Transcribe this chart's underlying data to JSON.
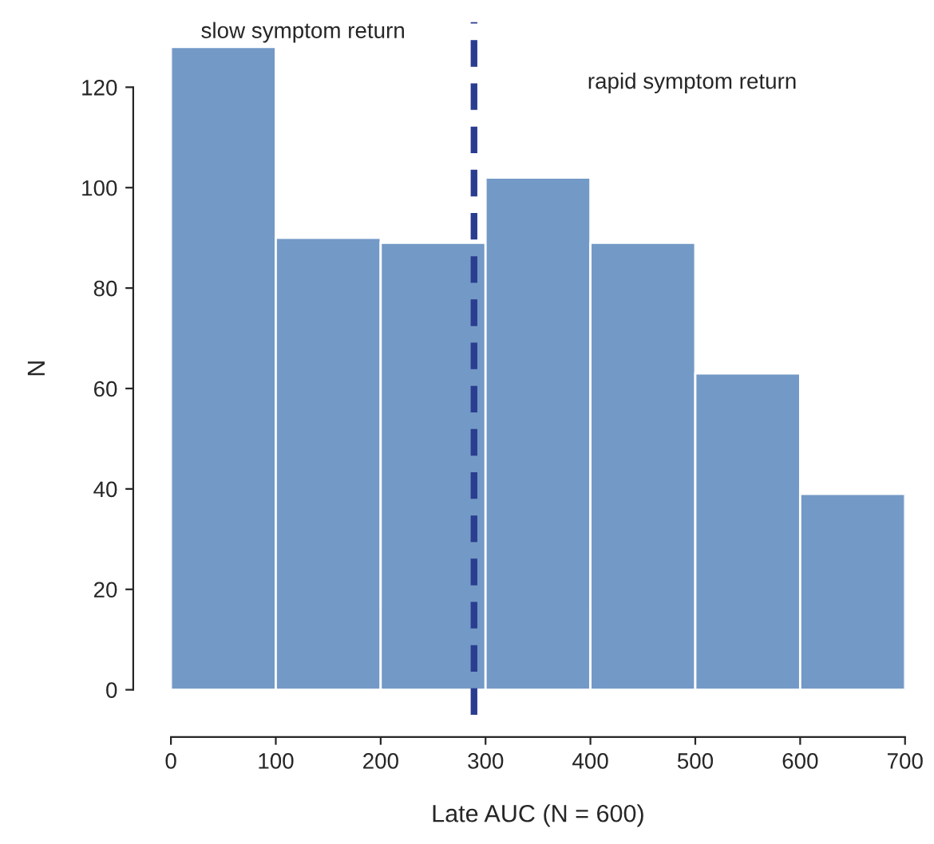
{
  "chart_data": {
    "type": "histogram",
    "xlabel": "Late AUC (N = 600)",
    "ylabel": "N",
    "bins": [
      0,
      100,
      200,
      300,
      400,
      500,
      600,
      700
    ],
    "values": [
      128,
      90,
      89,
      102,
      89,
      63,
      39
    ],
    "color": "#7399c6",
    "xlim": [
      0,
      700
    ],
    "ylim": [
      -5,
      133
    ],
    "xticks": [
      0,
      100,
      200,
      300,
      400,
      500,
      600,
      700
    ],
    "yticks": [
      0,
      20,
      40,
      60,
      80,
      100,
      120
    ],
    "grid": false,
    "ref_lines": [
      {
        "axis": "x",
        "value": 289,
        "color": "#2b3d8f",
        "line_style": "dashed"
      }
    ],
    "annotations": [
      "slow symptom return",
      "rapid symptom return"
    ]
  }
}
